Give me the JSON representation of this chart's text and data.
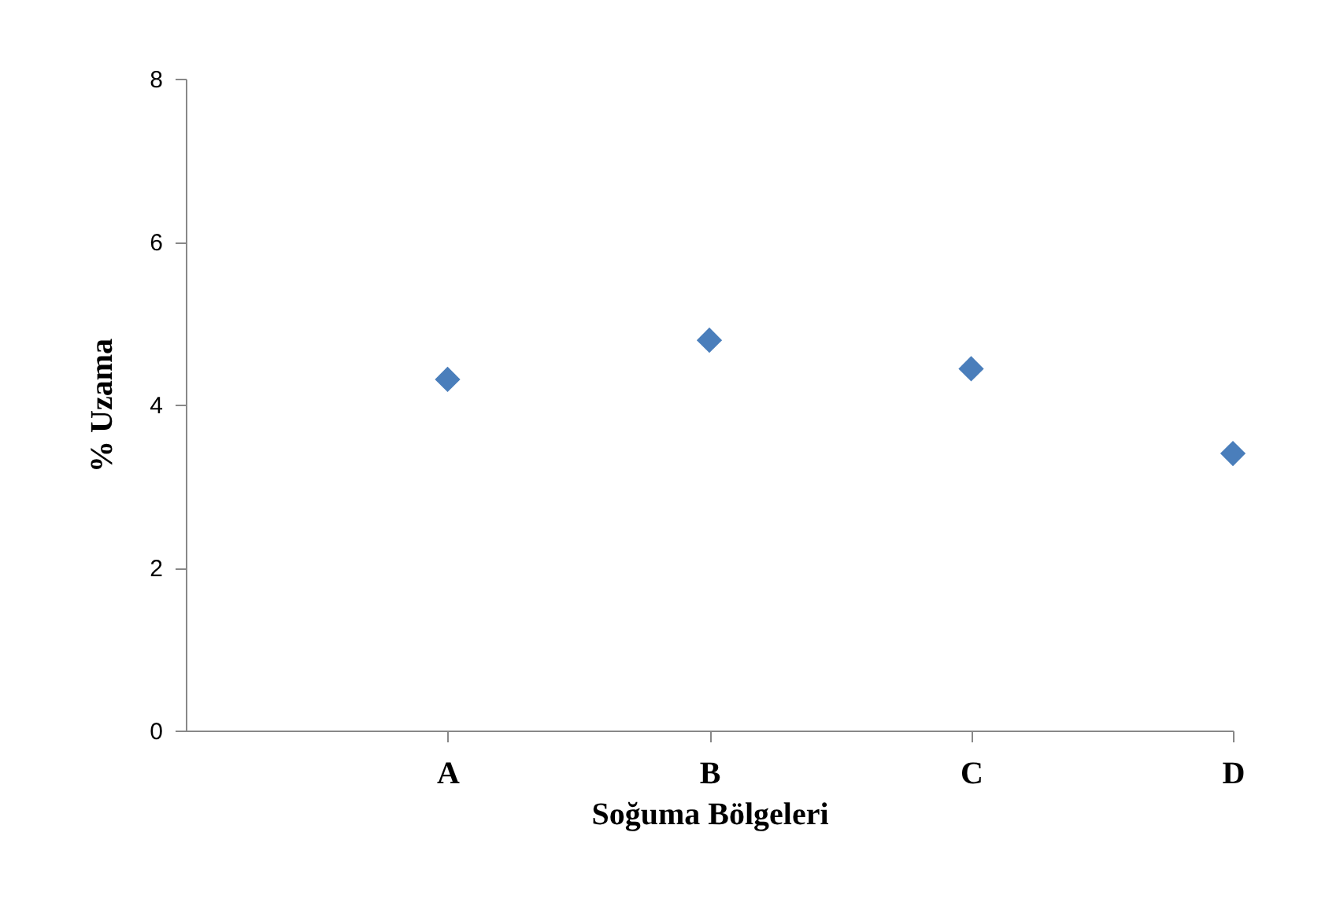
{
  "chart_data": {
    "type": "scatter",
    "xlabel": "Soğuma Bölgeleri",
    "ylabel": "% Uzama",
    "categories": [
      "A",
      "B",
      "C",
      "D"
    ],
    "series": [
      {
        "color": "#4a7ebb",
        "values": [
          4.31,
          4.79,
          4.44,
          3.4
        ]
      }
    ],
    "ylim": [
      0,
      8
    ],
    "yticks": [
      0,
      2,
      4,
      6,
      8
    ],
    "grid": false,
    "legend": false,
    "marker": "diamond"
  }
}
